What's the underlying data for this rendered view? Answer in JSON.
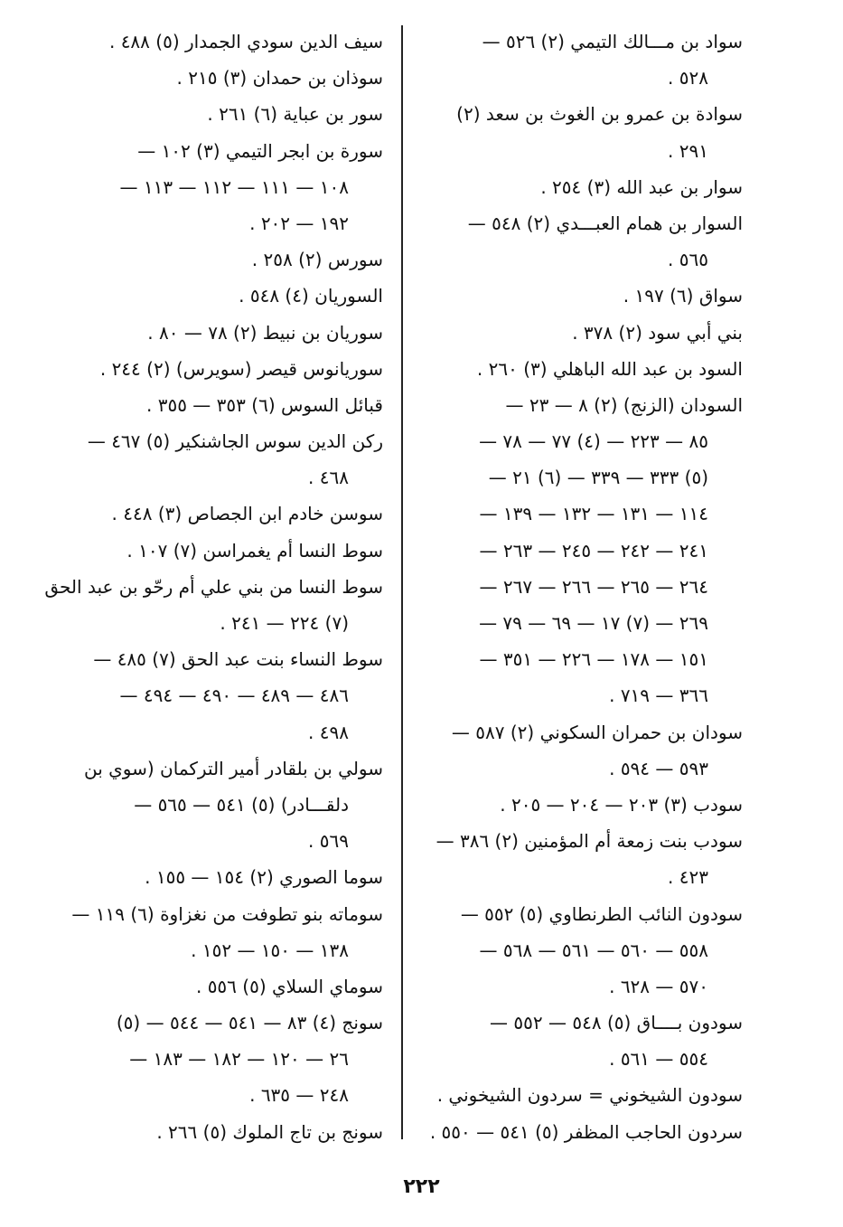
{
  "page_number": "٢٢٢",
  "columns": {
    "right": [
      {
        "text": "سواد بن مـــالك التيمي (٢) ٥٢٦ —",
        "cont": false
      },
      {
        "text": "٥٢٨ .",
        "cont": true
      },
      {
        "text": "سوادة بن عمرو بن الغوث بن سعد (٢)",
        "cont": false
      },
      {
        "text": "٢٩١ .",
        "cont": true
      },
      {
        "text": "سوار بن عبد الله (٣) ٢٥٤ .",
        "cont": false
      },
      {
        "text": "السوار بن همام العبـــدي (٢) ٥٤٨ —",
        "cont": false
      },
      {
        "text": "٥٦٥ .",
        "cont": true
      },
      {
        "text": "سواق (٦) ١٩٧ .",
        "cont": false
      },
      {
        "text": "بني أبي سود (٢) ٣٧٨ .",
        "cont": false
      },
      {
        "text": "السود بن عبد الله الباهلي (٣) ٢٦٠ .",
        "cont": false
      },
      {
        "text": "السودان (الزنج) (٢) ٨ — ٢٣ —",
        "cont": false
      },
      {
        "text": "٨٥ — ٢٢٣ — (٤) ٧٧ — ٧٨ —",
        "cont": true
      },
      {
        "text": "(٥) ٣٣٣ — ٣٣٩ — (٦) ٢١ —",
        "cont": true
      },
      {
        "text": "١١٤ — ١٣١ — ١٣٢ — ١٣٩ —",
        "cont": true
      },
      {
        "text": "٢٤١ — ٢٤٢ — ٢٤٥ — ٢٦٣ —",
        "cont": true
      },
      {
        "text": "٢٦٤ — ٢٦٥ — ٢٦٦ — ٢٦٧ —",
        "cont": true
      },
      {
        "text": "٢٦٩ — (٧) ١٧ — ٦٩ — ٧٩ —",
        "cont": true
      },
      {
        "text": "١٥١ — ١٧٨ — ٢٢٦ — ٣٥١ —",
        "cont": true
      },
      {
        "text": "٣٦٦ — ٧١٩ .",
        "cont": true
      },
      {
        "text": "سودان بن حمران السكوني (٢) ٥٨٧ —",
        "cont": false
      },
      {
        "text": "٥٩٣ — ٥٩٤ .",
        "cont": true
      },
      {
        "text": "سودب (٣) ٢٠٣ — ٢٠٤ — ٢٠٥ .",
        "cont": false
      },
      {
        "text": "سودب بنت زمعة أم المؤمنين (٢) ٣٨٦ —",
        "cont": false
      },
      {
        "text": "٤٢٣ .",
        "cont": true
      },
      {
        "text": "سودون النائب الطرنطاوي (٥) ٥٥٢ —",
        "cont": false
      },
      {
        "text": "٥٥٨ — ٥٦٠ — ٥٦١ — ٥٦٨ —",
        "cont": true
      },
      {
        "text": "٥٧٠ — ٦٢٨ .",
        "cont": true
      },
      {
        "text": "سودون بــــاق (٥) ٥٤٨ — ٥٥٢ —",
        "cont": false
      },
      {
        "text": "٥٥٤ — ٥٦١ .",
        "cont": true
      },
      {
        "text": "سودون الشيخوني = سردون الشيخوني .",
        "cont": false
      },
      {
        "text": "سردون الحاجب المظفر (٥) ٥٤١ — ٥٥٠ .",
        "cont": false
      }
    ],
    "left": [
      {
        "text": "سيف الدين سودي الجمدار (٥) ٤٨٨ .",
        "cont": false
      },
      {
        "text": "سوذان بن حمدان (٣) ٢١٥ .",
        "cont": false
      },
      {
        "text": "سور بن عباية (٦) ٢٦١ .",
        "cont": false
      },
      {
        "text": "سورة بن ابجر التيمي (٣) ١٠٢ —",
        "cont": false
      },
      {
        "text": "١٠٨ — ١١١ — ١١٢ — ١١٣ —",
        "cont": true
      },
      {
        "text": "١٩٢ — ٢٠٢ .",
        "cont": true
      },
      {
        "text": "سورس (٢) ٢٥٨ .",
        "cont": false
      },
      {
        "text": "السوريان (٤) ٥٤٨ .",
        "cont": false
      },
      {
        "text": "سوريان بن نبيط (٢) ٧٨ — ٨٠ .",
        "cont": false
      },
      {
        "text": "سوريانوس قيصر (سويرس) (٢) ٢٤٤ .",
        "cont": false
      },
      {
        "text": "قبائل السوس (٦) ٣٥٣ — ٣٥٥ .",
        "cont": false
      },
      {
        "text": "ركن الدين سوس الجاشنكير (٥) ٤٦٧ —",
        "cont": false
      },
      {
        "text": "٤٦٨ .",
        "cont": true
      },
      {
        "text": "سوسن خادم ابن الجصاص (٣) ٤٤٨ .",
        "cont": false
      },
      {
        "text": "سوط النسا أم يغمراسن (٧) ١٠٧ .",
        "cont": false
      },
      {
        "text": "سوط النسا من بني علي أم رحّو بن عبد الحق",
        "cont": false
      },
      {
        "text": "(٧) ٢٢٤ — ٢٤١ .",
        "cont": true
      },
      {
        "text": "سوط النساء بنت عبد الحق (٧) ٤٨٥ —",
        "cont": false
      },
      {
        "text": "٤٨٦ — ٤٨٩ — ٤٩٠ — ٤٩٤ —",
        "cont": true
      },
      {
        "text": "٤٩٨ .",
        "cont": true
      },
      {
        "text": "سولي بن بلقادر أمير التركمان (سوي بن",
        "cont": false
      },
      {
        "text": "دلقـــادر) (٥) ٥٤١ — ٥٦٥ —",
        "cont": true
      },
      {
        "text": "٥٦٩ .",
        "cont": true
      },
      {
        "text": "سوما الصوري (٢) ١٥٤ — ١٥٥ .",
        "cont": false
      },
      {
        "text": "سوماته بنو تطوفت من نغزاوة (٦) ١١٩ —",
        "cont": false
      },
      {
        "text": "١٣٨ — ١٥٠ — ١٥٢ .",
        "cont": true
      },
      {
        "text": "سوماي السلاي (٥) ٥٥٦ .",
        "cont": false
      },
      {
        "text": "سونج (٤) ٨٣ — ٥٤١ — ٥٤٤ — (٥)",
        "cont": false
      },
      {
        "text": "٢٦ — ١٢٠ — ١٨٢ — ١٨٣ —",
        "cont": true
      },
      {
        "text": "٢٤٨ — ٦٣٥ .",
        "cont": true
      },
      {
        "text": "سونج بن تاج الملوك (٥) ٢٦٦ .",
        "cont": false
      }
    ]
  }
}
